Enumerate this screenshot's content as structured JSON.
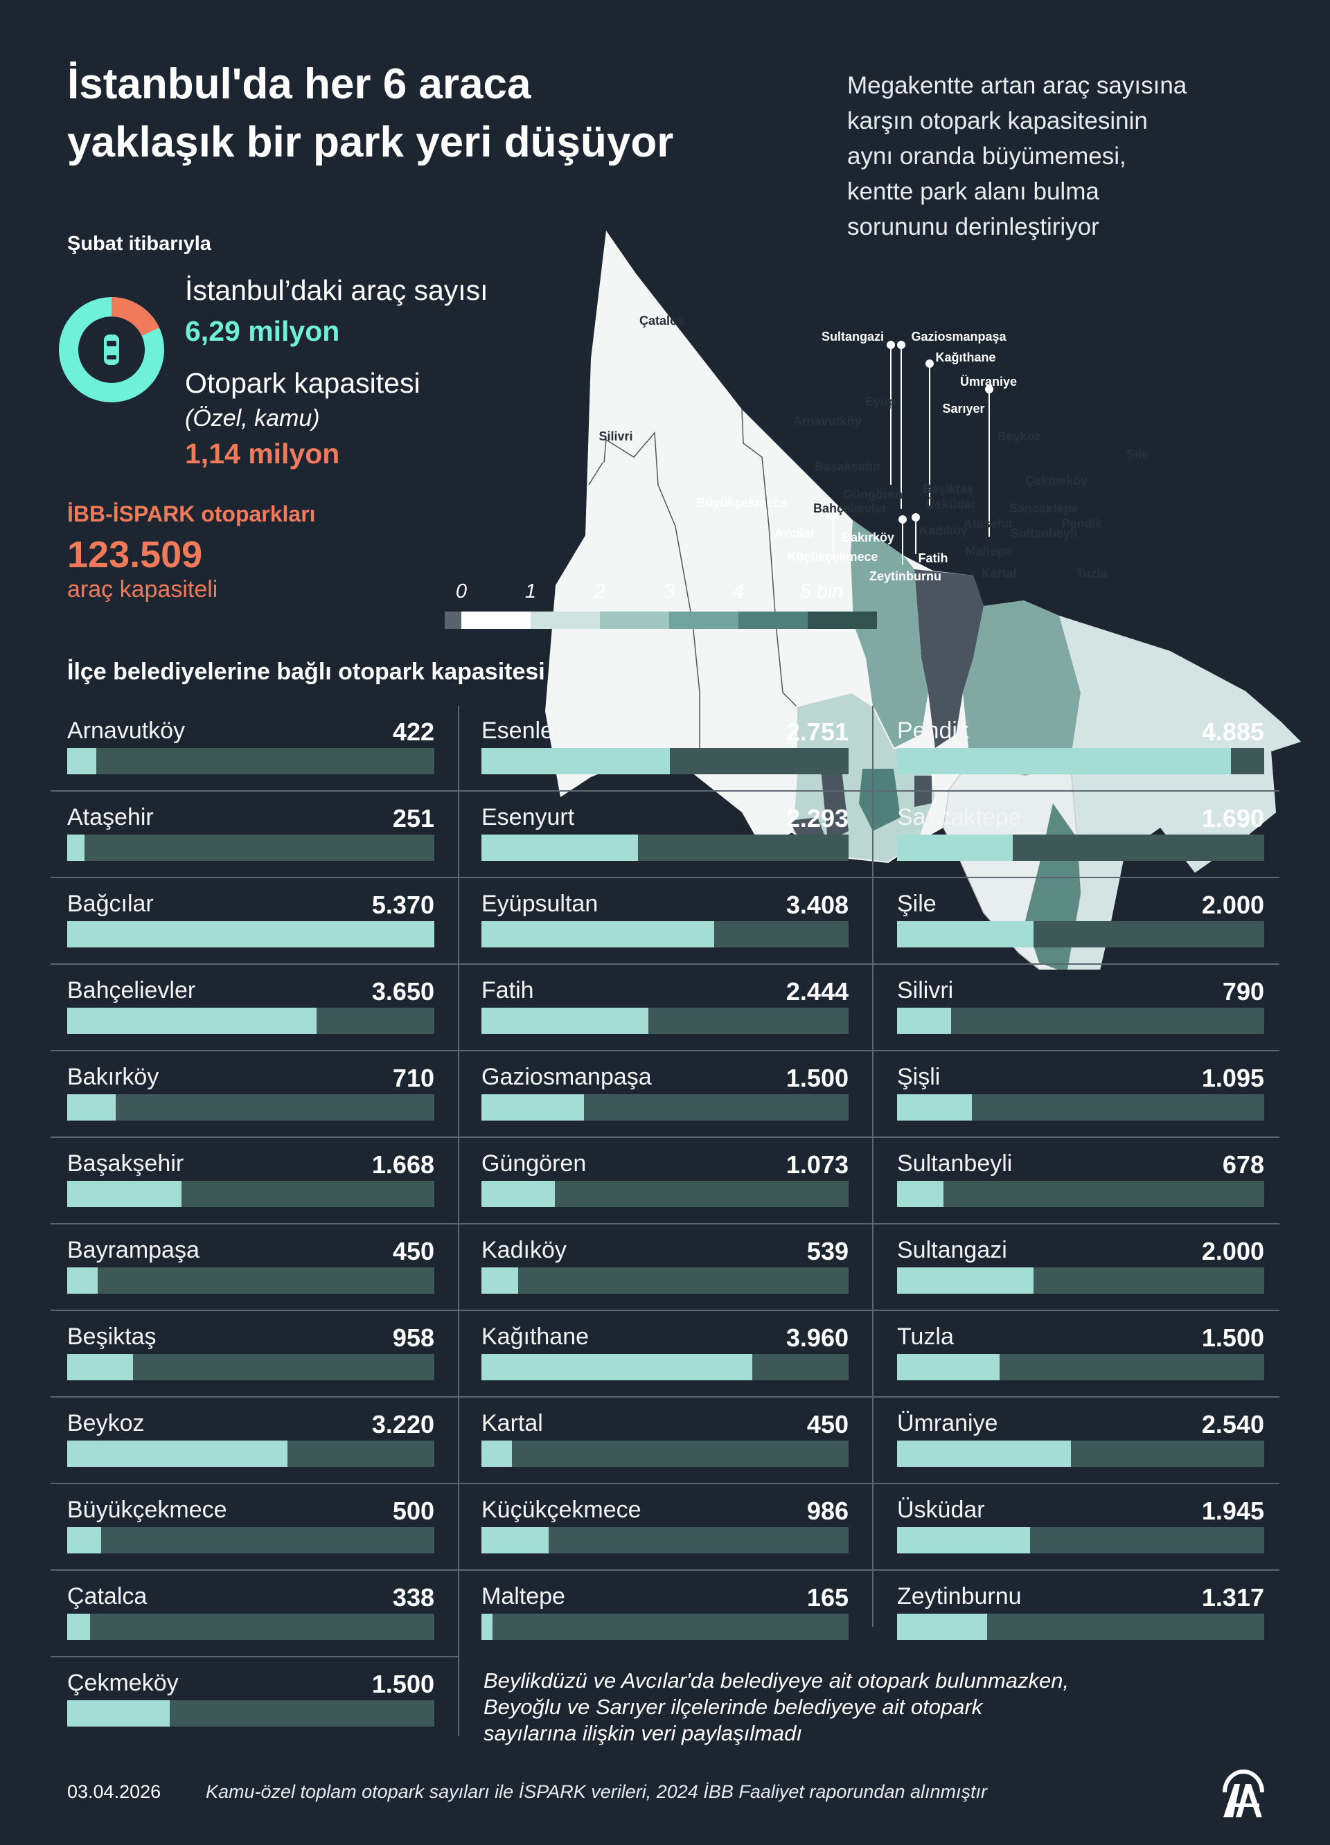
{
  "header": {
    "title_lines": [
      "İstanbul'da her 6 araca",
      "yaklaşık bir park yeri düşüyor"
    ],
    "subtitle_lines": [
      "Megakentte artan araç sayısına",
      "karşın otopark kapasitesinin",
      "aynı oranda büyümemesi,",
      "kentte park alanı bulma",
      "sorununu derinleştiriyor"
    ]
  },
  "stats": {
    "as_of": "Şubat itibarıyla",
    "vehicles_label": "İstanbul’daki araç sayısı",
    "vehicles_value": "6,29 milyon",
    "parking_label": "Otopark kapasitesi",
    "parking_sub": "(Özel, kamu)",
    "parking_value": "1,14 milyon",
    "ispark_label": "İBB-İSPARK otoparkları",
    "ispark_value": "123.509",
    "ispark_unit": "araç kapasiteli",
    "donut": {
      "total_millions": 6.29,
      "parking_millions": 1.14,
      "icon": "car-icon",
      "colors": {
        "vehicles": "#6ff0d8",
        "parking": "#f07a5a"
      }
    }
  },
  "map": {
    "legend": {
      "labels": [
        "0",
        "1",
        "2",
        "3",
        "4",
        "5 bin"
      ],
      "colors": [
        "#59636b",
        "#ffffff",
        "#cfe3df",
        "#a1c6bf",
        "#70a39b",
        "#4f8079",
        "#325250"
      ]
    },
    "districts": [
      "Çatalca",
      "Silivri",
      "Arnavutköy",
      "Eyüp",
      "Sarıyer",
      "Beykoz",
      "Şile",
      "Çekmeköy",
      "Başakşehir",
      "Büyükçekmece",
      "Güngören",
      "Bahçelievler",
      "Beşiktaş",
      "Üsküdar",
      "Sancaktepe",
      "Ataşehir",
      "Pendik",
      "Sultanbeyli",
      "Kadıköy",
      "Avcılar",
      "Bakırköy",
      "Küçükçekmece",
      "Fatih",
      "Maltepe",
      "Zeytinburnu",
      "Kartal",
      "Tuzla",
      "Sultangazi",
      "Gaziosmanpaşa",
      "Kağıthane",
      "Ümraniye"
    ]
  },
  "section_title": "İlçe belediyelerine bağlı otopark kapasitesi",
  "chart_data": {
    "type": "bar",
    "orientation": "horizontal",
    "bar_max": 5370,
    "colors": {
      "fill": "#a3ddd3",
      "track": "#3d5856"
    },
    "columns": [
      [
        {
          "name": "Arnavutköy",
          "label": "422",
          "value": 422
        },
        {
          "name": "Ataşehir",
          "label": "251",
          "value": 251
        },
        {
          "name": "Bağcılar",
          "label": "5.370",
          "value": 5370
        },
        {
          "name": "Bahçelievler",
          "label": "3.650",
          "value": 3650
        },
        {
          "name": "Bakırköy",
          "label": "710",
          "value": 710
        },
        {
          "name": "Başakşehir",
          "label": "1.668",
          "value": 1668
        },
        {
          "name": "Bayrampaşa",
          "label": "450",
          "value": 450
        },
        {
          "name": "Beşiktaş",
          "label": "958",
          "value": 958
        },
        {
          "name": "Beykoz",
          "label": "3.220",
          "value": 3220
        },
        {
          "name": "Büyükçekmece",
          "label": "500",
          "value": 500
        },
        {
          "name": "Çatalca",
          "label": "338",
          "value": 338
        },
        {
          "name": "Çekmeköy",
          "label": "1.500",
          "value": 1500
        }
      ],
      [
        {
          "name": "Esenler",
          "label": "2.751",
          "value": 2751
        },
        {
          "name": "Esenyurt",
          "label": "2.293",
          "value": 2293
        },
        {
          "name": "Eyüpsultan",
          "label": "3.408",
          "value": 3408
        },
        {
          "name": "Fatih",
          "label": "2.444",
          "value": 2444
        },
        {
          "name": "Gaziosmanpaşa",
          "label": "1.500",
          "value": 1500
        },
        {
          "name": "Güngören",
          "label": "1.073",
          "value": 1073
        },
        {
          "name": "Kadıköy",
          "label": "539",
          "value": 539
        },
        {
          "name": "Kağıthane",
          "label": "3.960",
          "value": 3960
        },
        {
          "name": "Kartal",
          "label": "450",
          "value": 450
        },
        {
          "name": "Küçükçekmece",
          "label": "986",
          "value": 986
        },
        {
          "name": "Maltepe",
          "label": "165",
          "value": 165
        }
      ],
      [
        {
          "name": "Pendik",
          "label": "4.885",
          "value": 4885
        },
        {
          "name": "Sancaktepe",
          "label": "1.690",
          "value": 1690
        },
        {
          "name": "Şile",
          "label": "2.000",
          "value": 2000
        },
        {
          "name": "Silivri",
          "label": "790",
          "value": 790
        },
        {
          "name": "Şişli",
          "label": "1.095",
          "value": 1095
        },
        {
          "name": "Sultanbeyli",
          "label": "678",
          "value": 678
        },
        {
          "name": "Sultangazi",
          "label": "2.000",
          "value": 2000
        },
        {
          "name": "Tuzla",
          "label": "1.500",
          "value": 1500
        },
        {
          "name": "Ümraniye",
          "label": "2.540",
          "value": 2540
        },
        {
          "name": "Üsküdar",
          "label": "1.945",
          "value": 1945
        },
        {
          "name": "Zeytinburnu",
          "label": "1.317",
          "value": 1317
        }
      ]
    ]
  },
  "note_lines": [
    "Beylikdüzü ve Avcılar'da belediyeye ait otopark bulunmazken,",
    "Beyoğlu ve Sarıyer ilçelerinde belediyeye ait otopark",
    "sayılarına ilişkin veri paylaşılmadı"
  ],
  "footer": {
    "date": "03.04.2026",
    "source": "Kamu-özel toplam otopark sayıları ile İSPARK verileri, 2024 İBB Faaliyet raporundan alınmıştır",
    "logo": "AA"
  }
}
